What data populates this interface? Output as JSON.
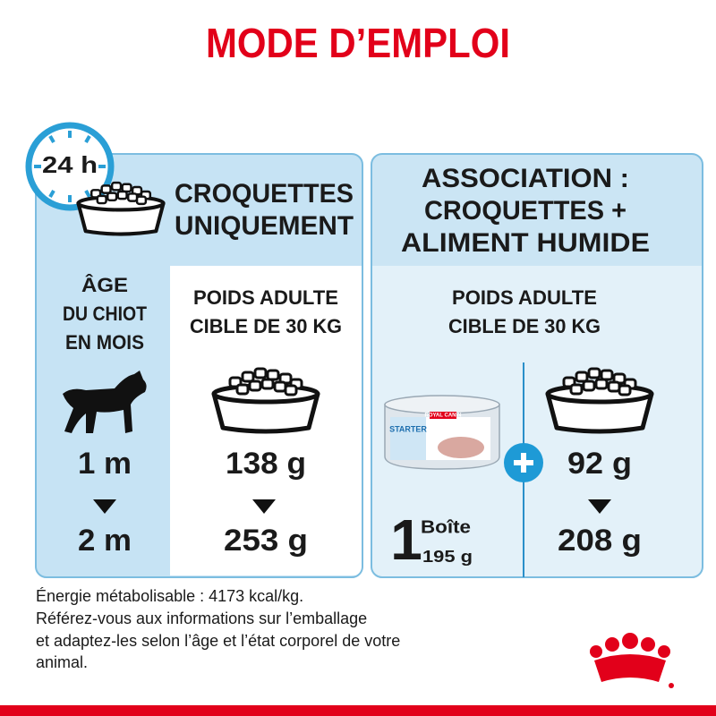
{
  "title": "MODE D’EMPLOI",
  "clock_label": "24 h",
  "kibble_only": {
    "heading": [
      "CROQUETTES",
      "UNIQUEMENT"
    ],
    "target": [
      "POIDS ADULTE",
      "CIBLE DE 30 KG"
    ],
    "amounts": [
      "138 g",
      "253 g"
    ]
  },
  "age": {
    "heading": [
      "ÂGE",
      "DU CHIOT",
      "EN MOIS"
    ],
    "values": [
      "1 m",
      "2 m"
    ]
  },
  "mixed": {
    "heading": [
      "ASSOCIATION :",
      "CROQUETTES +",
      "ALIMENT HUMIDE"
    ],
    "target": [
      "POIDS ADULTE",
      "CIBLE DE 30 KG"
    ],
    "can_brand": "ROYAL CANIN",
    "can_label": "STARTER",
    "wet": {
      "count": "1",
      "unit": "Boîte",
      "weight": "195 g"
    },
    "amounts": [
      "92 g",
      "208 g"
    ]
  },
  "footer": [
    "Énergie métabolisable : 4173 kcal/kg.",
    "Référez-vous aux informations sur l’emballage",
    "et adaptez-les selon l’âge et l’état corporel de votre",
    "animal."
  ]
}
